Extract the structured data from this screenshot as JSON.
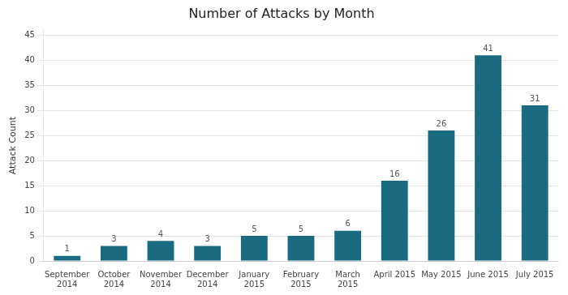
{
  "chart_data": {
    "type": "bar",
    "title": "Number of Attacks by Month",
    "ylabel": "Attack Count",
    "categories": [
      "September\n2014",
      "October\n2014",
      "November\n2014",
      "December\n2014",
      "January\n2015",
      "February\n2015",
      "March\n2015",
      "April 2015",
      "May 2015",
      "June 2015",
      "July 2015"
    ],
    "values": [
      1,
      3,
      4,
      3,
      5,
      5,
      6,
      16,
      26,
      41,
      31
    ],
    "color": "#1a6b82",
    "ylim": [
      0,
      46
    ],
    "yticks": [
      0,
      5,
      10,
      15,
      20,
      25,
      30,
      35,
      40,
      45
    ],
    "grid": true,
    "data_labels": true
  }
}
